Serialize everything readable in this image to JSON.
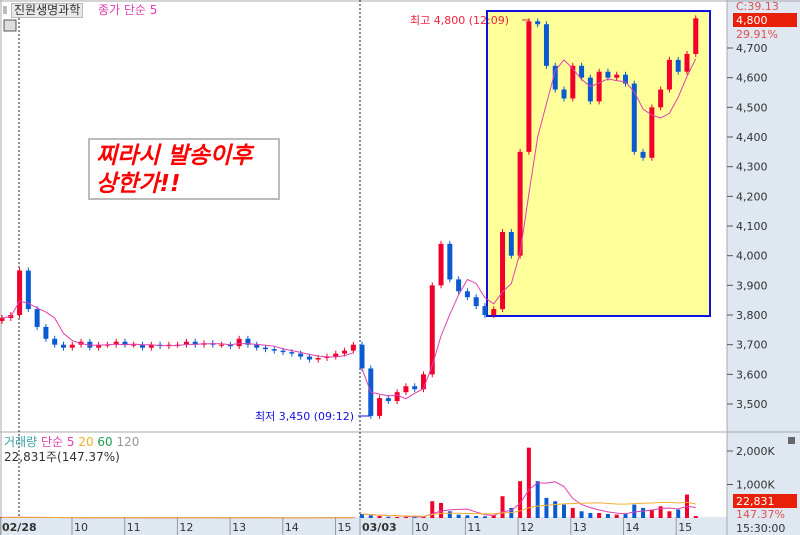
{
  "header": {
    "stock_name": "진원생명과학",
    "ma_legend": "종가 단순 5"
  },
  "callout": {
    "line1": "찌라시 발송이후",
    "line2": "상한가!!"
  },
  "annotations": {
    "high": "최고 4,800 (12:09)",
    "low": "최저 3,450 (09:12)",
    "highlight_box": {
      "from": "11:30",
      "to": "15:30",
      "price_low": 3800,
      "price_high": 4800
    }
  },
  "right_axis": {
    "top_label": "C:39.13",
    "current_price": "4,800",
    "change_pct": "29.91%",
    "volume_current": "22,831",
    "volume_pct": "147.37%",
    "time": "15:30:00"
  },
  "volume_legend": {
    "title": "거래량",
    "ma5": "단순 5",
    "ma20": "20",
    "ma60": "60",
    "ma120": "120",
    "info": "22,831주(147.37%)"
  },
  "colors": {
    "up": "#f0002a",
    "down": "#0a5ad2",
    "ma5": "#e040b0",
    "ma20": "#f0b030",
    "ma60": "#20a050",
    "ma120": "#999999",
    "box_fill": "#ffff99",
    "box_border": "#1010e0",
    "axis_bg": "#dfe7f1"
  },
  "chart_data": [
    {
      "type": "candlestick",
      "interval": "10min",
      "price_ticks": [
        "4,700",
        "4,600",
        "4,500",
        "4,400",
        "4,300",
        "4,200",
        "4,100",
        "4,000",
        "3,900",
        "3,800",
        "3,700",
        "3,600",
        "3,500"
      ],
      "ylim": [
        3450,
        4800
      ],
      "x_tick_labels": [
        "02/28",
        "10",
        "11",
        "12",
        "13",
        "14",
        "15",
        "03/03",
        "10",
        "11",
        "12",
        "13",
        "14",
        "15"
      ],
      "days": [
        {
          "date": "02/28",
          "close": [
            3790,
            3800,
            3950,
            3820,
            3760,
            3720,
            3700,
            3690,
            3700,
            3710,
            3690,
            3700,
            3700,
            3710,
            3700,
            3700,
            3690,
            3700,
            3695,
            3700,
            3700,
            3710,
            3700,
            3705,
            3700,
            3700,
            3695,
            3720,
            3700,
            3690,
            3685,
            3680,
            3675,
            3670,
            3660,
            3650,
            3655,
            3660,
            3670,
            3680,
            3700
          ],
          "volume_k": [
            20,
            15,
            30,
            15,
            12,
            10,
            8,
            8,
            10,
            8,
            6,
            6,
            8,
            6,
            5,
            5,
            6,
            5,
            4,
            5,
            6,
            8,
            5,
            4,
            5,
            4,
            5,
            10,
            6,
            5,
            5,
            4,
            4,
            5,
            4,
            5,
            10,
            6,
            8,
            6,
            10
          ]
        },
        {
          "date": "03/03",
          "close": [
            3620,
            3460,
            3520,
            3510,
            3540,
            3560,
            3550,
            3600,
            3900,
            4040,
            3920,
            3880,
            3860,
            3830,
            3800,
            3820,
            4080,
            4000,
            4350,
            4790,
            4780,
            4640,
            4560,
            4530,
            4640,
            4600,
            4520,
            4620,
            4600,
            4610,
            4580,
            4350,
            4330,
            4500,
            4560,
            4660,
            4620,
            4680,
            4800
          ],
          "volume_k": [
            120,
            80,
            60,
            40,
            30,
            30,
            30,
            40,
            500,
            450,
            200,
            100,
            80,
            60,
            50,
            80,
            650,
            300,
            1100,
            2100,
            1100,
            600,
            500,
            400,
            300,
            200,
            150,
            150,
            120,
            100,
            120,
            400,
            300,
            250,
            350,
            200,
            250,
            700,
            60
          ]
        }
      ]
    },
    {
      "type": "bar",
      "name": "거래량",
      "y_ticks": [
        "2,000K",
        "1,000K"
      ]
    }
  ]
}
